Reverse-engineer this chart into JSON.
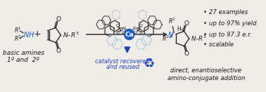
{
  "bg_color": "#f0ede8",
  "left_text_line1": "basic amines",
  "left_text_line2": "1º and  2º",
  "arrow_text_line1": "catalyst recovered",
  "arrow_text_line2": "and reused",
  "right_bullets": [
    "• 27 examples",
    "• up to 97% yield",
    "• up to 97:3 e.r.",
    "• scalable"
  ],
  "bottom_text_line1": "direct, enantioselective",
  "bottom_text_line2": "amino-conjugate addition",
  "blue_color": "#1a5fc8",
  "dark_color": "#1a1a1a",
  "ca_blue": "#1a5fc8",
  "arrow_blue": "#2244bb",
  "ring_dark": "#333333",
  "ring_light": "#aaccdd"
}
